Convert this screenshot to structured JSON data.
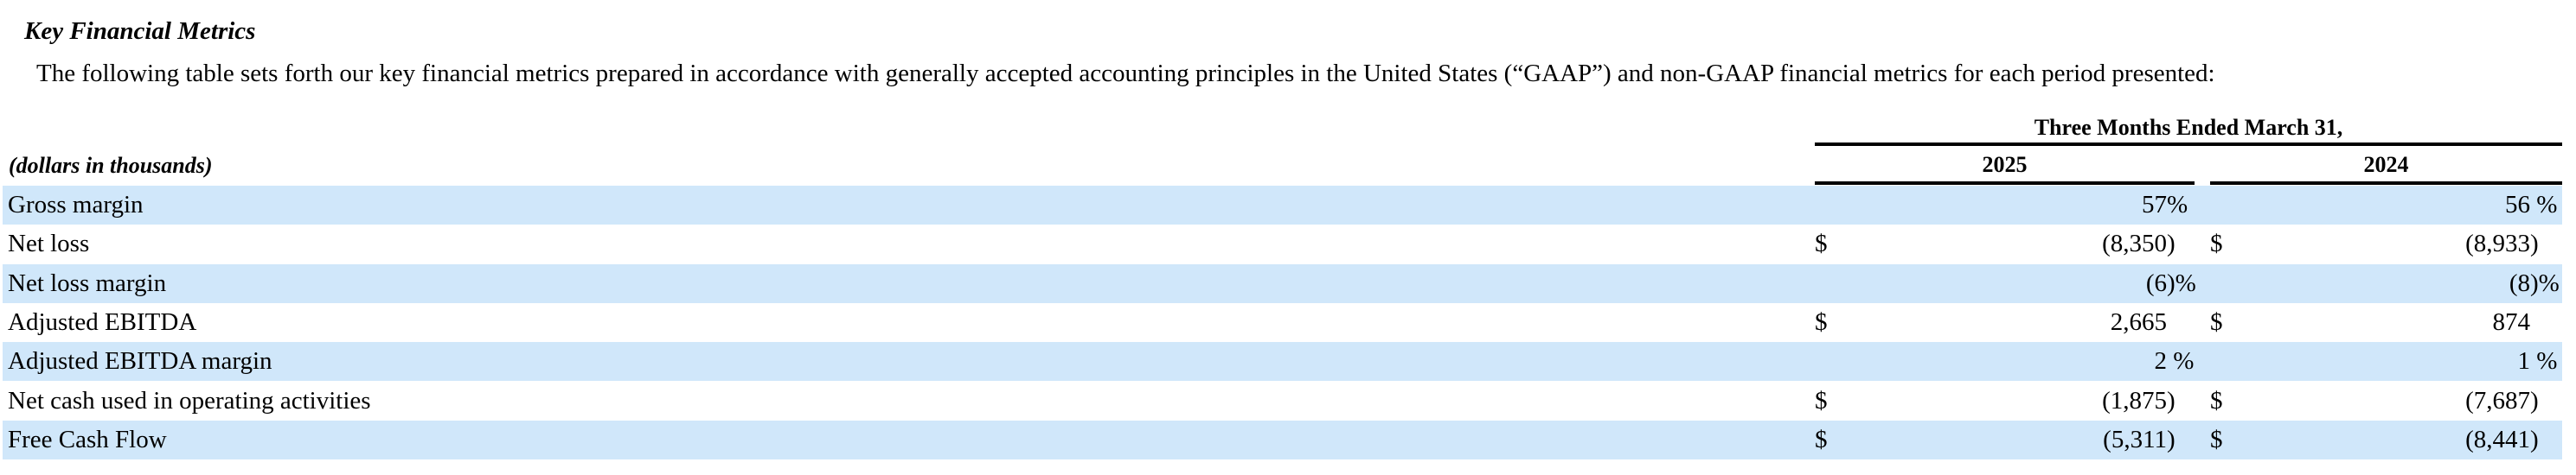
{
  "document": {
    "heading": "Key Financial Metrics",
    "intro": "The following table sets forth our key financial metrics prepared in accordance with generally accepted accounting principles in the United States (“GAAP”) and non-GAAP financial metrics for each period presented:"
  },
  "table": {
    "units_note": "(dollars in thousands)",
    "period_header": "Three Months Ended March 31,",
    "columns": {
      "year1": "2025",
      "year2": "2024"
    },
    "rows": [
      {
        "label": "Gross margin",
        "c1": {
          "sym": "",
          "num": "57",
          "suf": "%"
        },
        "c2": {
          "sym": "",
          "num": "56",
          "suf": " %"
        }
      },
      {
        "label": "Net loss",
        "c1": {
          "sym": "$",
          "num": "(8,350",
          "suf": ")"
        },
        "c2": {
          "sym": "$",
          "num": "(8,933",
          "suf": ")"
        }
      },
      {
        "label": "Net loss margin",
        "c1": {
          "sym": "",
          "num": "(6",
          "suf": ")%"
        },
        "c2": {
          "sym": "",
          "num": "(8",
          "suf": ")%"
        }
      },
      {
        "label": "Adjusted EBITDA",
        "c1": {
          "sym": "$",
          "num": "2,665",
          "suf": ""
        },
        "c2": {
          "sym": "$",
          "num": "874",
          "suf": ""
        }
      },
      {
        "label": "Adjusted EBITDA margin",
        "c1": {
          "sym": "",
          "num": "2",
          "suf": " %"
        },
        "c2": {
          "sym": "",
          "num": "1",
          "suf": " %"
        }
      },
      {
        "label": "Net cash used in operating activities",
        "c1": {
          "sym": "$",
          "num": "(1,875",
          "suf": ")"
        },
        "c2": {
          "sym": "$",
          "num": "(7,687",
          "suf": ")"
        }
      },
      {
        "label": "Free Cash Flow",
        "c1": {
          "sym": "$",
          "num": "(5,311",
          "suf": ")"
        },
        "c2": {
          "sym": "$",
          "num": "(8,441",
          "suf": ")"
        }
      }
    ]
  },
  "colors": {
    "row_highlight": "#d0e7fa",
    "text": "#000000",
    "rule": "#000000"
  }
}
